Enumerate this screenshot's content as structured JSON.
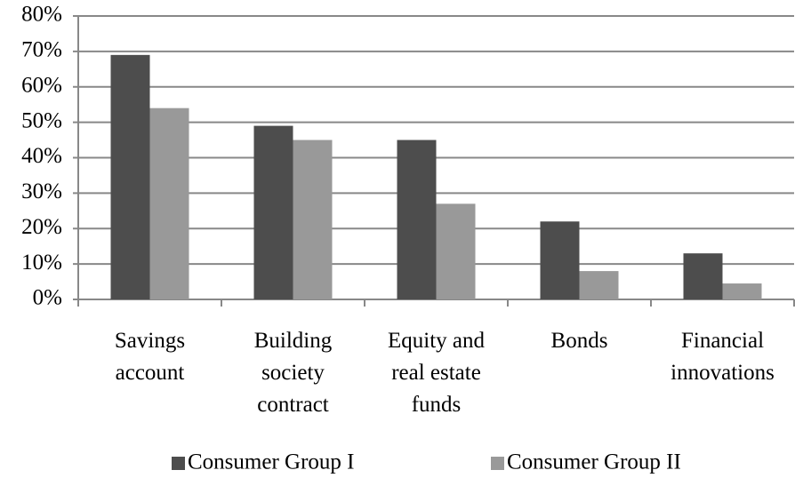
{
  "chart_data": {
    "type": "bar",
    "categories": [
      "Savings account",
      "Building society contract",
      "Equity and real estate funds",
      "Bonds",
      "Financial innovations"
    ],
    "series": [
      {
        "name": "Consumer Group I",
        "color": "#4d4d4d",
        "values": [
          69,
          49,
          45,
          22,
          13
        ]
      },
      {
        "name": "Consumer Group II",
        "color": "#999999",
        "values": [
          54,
          45,
          27,
          8,
          4.5
        ]
      }
    ],
    "ylim": [
      0,
      80
    ],
    "yticks": [
      {
        "value": 0,
        "label": "0%"
      },
      {
        "value": 10,
        "label": "10%"
      },
      {
        "value": 20,
        "label": "20%"
      },
      {
        "value": 30,
        "label": "30%"
      },
      {
        "value": 40,
        "label": "40%"
      },
      {
        "value": 50,
        "label": "50%"
      },
      {
        "value": 60,
        "label": "60%"
      },
      {
        "value": 70,
        "label": "70%"
      },
      {
        "value": 80,
        "label": "80%"
      }
    ],
    "grid": true,
    "legend": "bottom"
  }
}
